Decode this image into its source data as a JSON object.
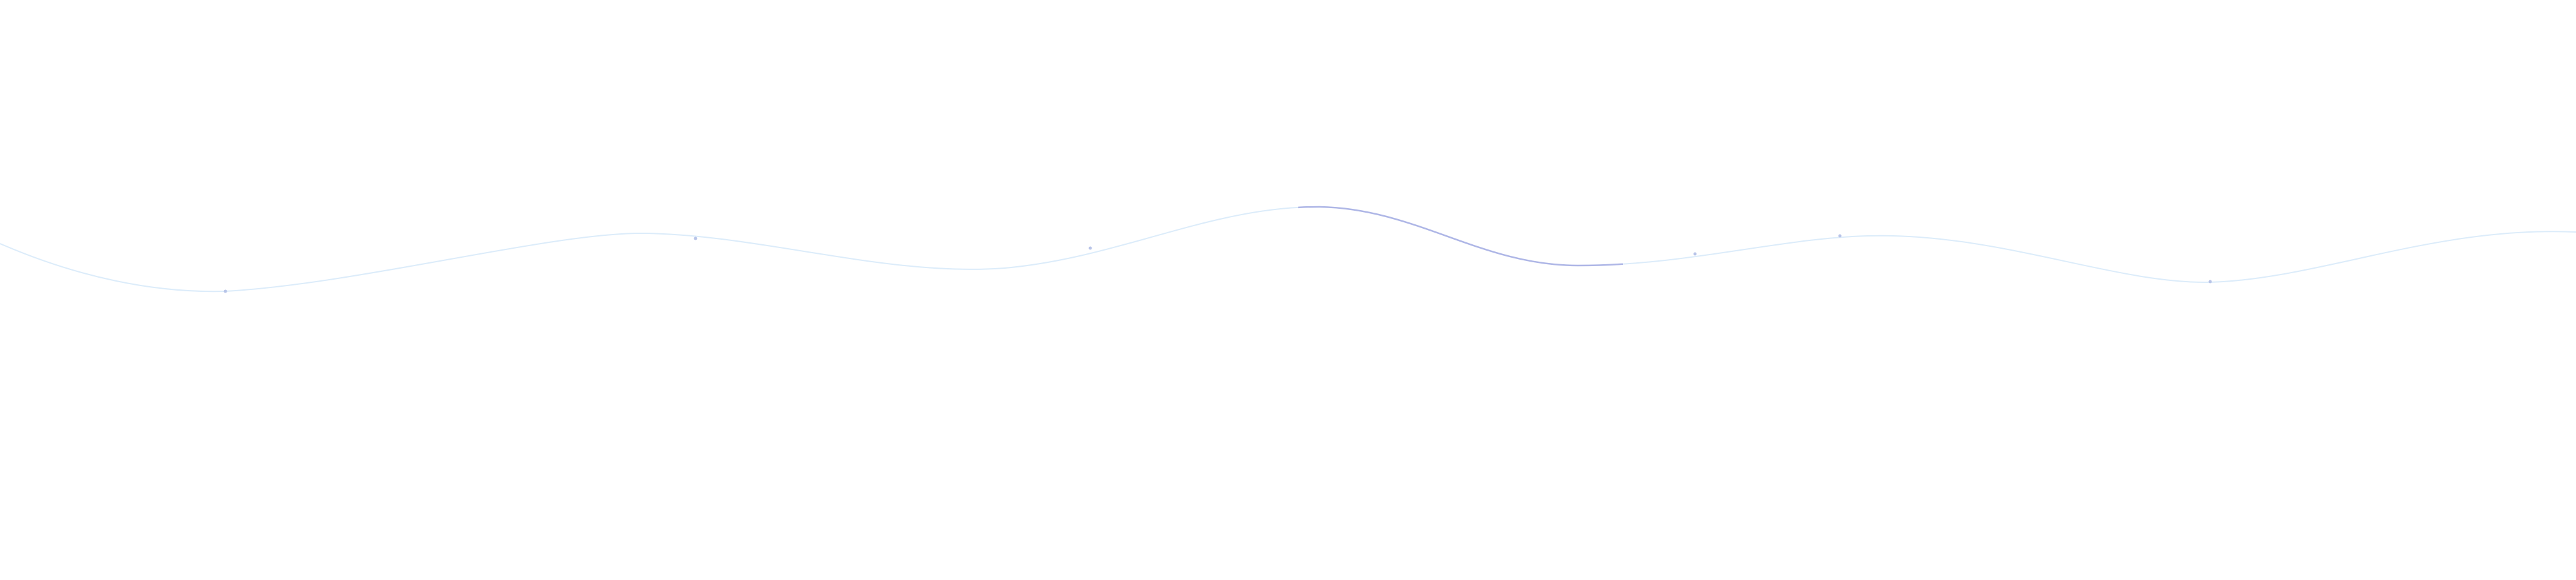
{
  "wave": {
    "icon": "decorative-wave",
    "base_color": "#dcecfa",
    "highlight_color": "#aeb6e6",
    "dot_color": "#b8c4e8"
  }
}
